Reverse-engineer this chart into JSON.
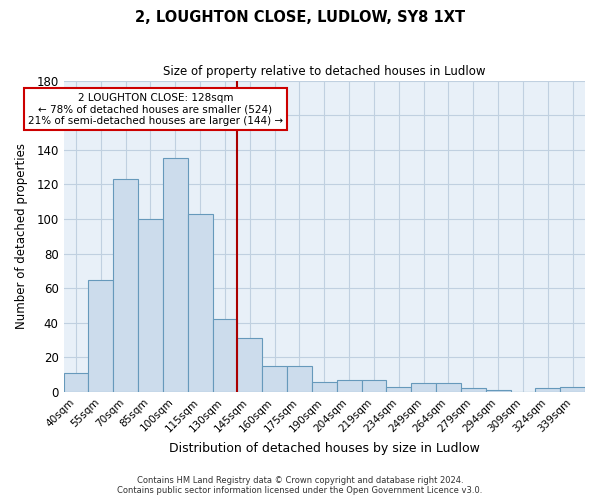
{
  "title": "2, LOUGHTON CLOSE, LUDLOW, SY8 1XT",
  "subtitle": "Size of property relative to detached houses in Ludlow",
  "xlabel": "Distribution of detached houses by size in Ludlow",
  "ylabel": "Number of detached properties",
  "bar_labels": [
    "40sqm",
    "55sqm",
    "70sqm",
    "85sqm",
    "100sqm",
    "115sqm",
    "130sqm",
    "145sqm",
    "160sqm",
    "175sqm",
    "190sqm",
    "204sqm",
    "219sqm",
    "234sqm",
    "249sqm",
    "264sqm",
    "279sqm",
    "294sqm",
    "309sqm",
    "324sqm",
    "339sqm"
  ],
  "bar_values": [
    11,
    65,
    123,
    100,
    135,
    103,
    42,
    31,
    15,
    15,
    6,
    7,
    7,
    3,
    5,
    5,
    2,
    1,
    0,
    2,
    3
  ],
  "bar_color": "#ccdcec",
  "bar_edge_color": "#6699bb",
  "grid_color": "#c0d0e0",
  "background_color": "#e8f0f8",
  "vline_color": "#aa0000",
  "annotation_text": "2 LOUGHTON CLOSE: 128sqm\n← 78% of detached houses are smaller (524)\n21% of semi-detached houses are larger (144) →",
  "annotation_box_color": "#ffffff",
  "annotation_box_edge_color": "#cc0000",
  "ylim": [
    0,
    180
  ],
  "yticks": [
    0,
    20,
    40,
    60,
    80,
    100,
    120,
    140,
    160,
    180
  ],
  "footer_line1": "Contains HM Land Registry data © Crown copyright and database right 2024.",
  "footer_line2": "Contains public sector information licensed under the Open Government Licence v3.0."
}
